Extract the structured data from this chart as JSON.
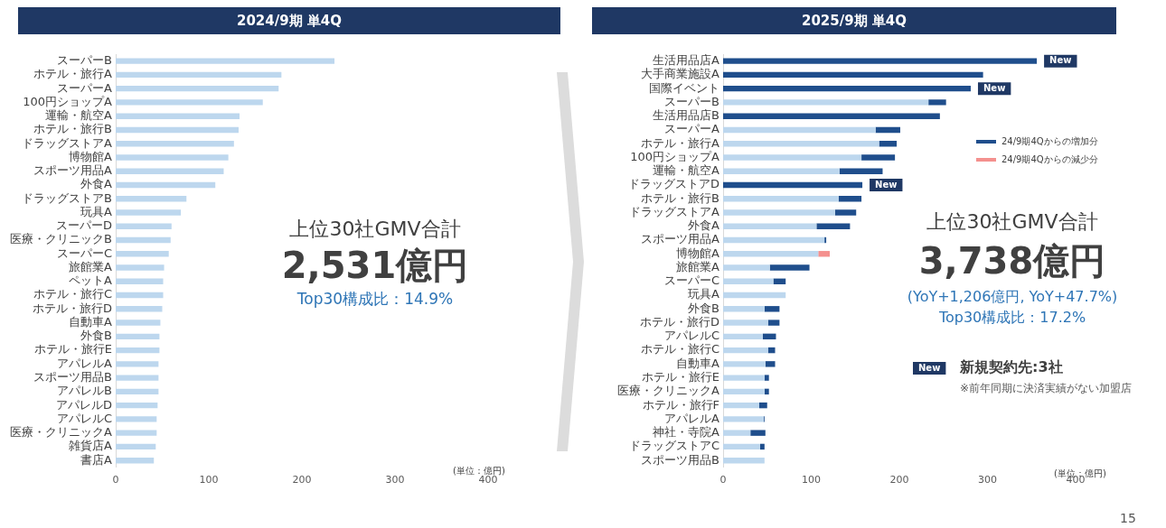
{
  "chart_data": [
    {
      "type": "bar",
      "orientation": "horizontal",
      "title": "2024/9期 単4Q",
      "categories": [
        "スーパーB",
        "ホテル・旅行A",
        "スーパーA",
        "100円ショップA",
        "運輸・航空A",
        "ホテル・旅行B",
        "ドラッグストアA",
        "博物館A",
        "スポーツ用品A",
        "外食A",
        "ドラッグストアB",
        "玩具A",
        "スーパーD",
        "医療・クリニックB",
        "スーパーC",
        "旅館業A",
        "ペットA",
        "ホテル・旅行C",
        "ホテル・旅行D",
        "自動車A",
        "外食B",
        "ホテル・旅行E",
        "アパレルA",
        "スポーツ用品B",
        "アパレルB",
        "アパレルD",
        "アパレルC",
        "医療・クリニックA",
        "雑貨店A",
        "書店A"
      ],
      "values": [
        235,
        178,
        175,
        158,
        133,
        132,
        127,
        121,
        116,
        107,
        76,
        70,
        60,
        59,
        57,
        52,
        51,
        51,
        50,
        48,
        47,
        47,
        46,
        46,
        46,
        45,
        44,
        44,
        43,
        41
      ],
      "color": "#bdd7ee",
      "xlim": [
        0,
        400
      ],
      "xticks": [
        0,
        100,
        200,
        300,
        400
      ],
      "annotations": [
        "上位30社GMV合計",
        "2,531億円",
        "Top30構成比：14.9%",
        "(単位：億円)"
      ]
    },
    {
      "type": "bar",
      "orientation": "horizontal",
      "stacked": true,
      "title": "2025/9期 単4Q",
      "categories": [
        "生活用品店A",
        "大手商業施設A",
        "国際イベント",
        "スーパーB",
        "生活用品店B",
        "スーパーA",
        "ホテル・旅行A",
        "100円ショップA",
        "運輸・航空A",
        "ドラッグストアD",
        "ホテル・旅行B",
        "ドラッグストアA",
        "外食A",
        "スポーツ用品A",
        "博物館A",
        "旅館業A",
        "スーパーC",
        "玩具A",
        "外食B",
        "ホテル・旅行D",
        "アパレルC",
        "ホテル・旅行C",
        "自動車A",
        "ホテル・旅行E",
        "医療・クリニックA",
        "ホテル・旅行F",
        "アパレルA",
        "神社・寺院A",
        "ドラッグストアC",
        "スポーツ用品B"
      ],
      "series": [
        {
          "color": "#bdd7ee",
          "values": [
            null,
            null,
            null,
            233,
            null,
            173,
            177,
            157,
            132,
            null,
            131,
            127,
            106,
            115,
            108,
            53,
            57,
            71,
            47,
            51,
            45,
            51,
            48,
            47,
            47,
            41,
            46,
            31,
            42,
            47
          ]
        },
        {
          "name": "24/9期4Qからの増加分",
          "color": "#1f4e8c",
          "values": [
            356,
            295,
            281,
            20,
            246,
            28,
            20,
            38,
            49,
            158,
            26,
            24,
            38,
            2,
            null,
            45,
            14,
            null,
            17,
            13,
            15,
            8,
            11,
            5,
            5,
            9,
            1,
            17,
            5,
            null
          ]
        },
        {
          "name": "24/9期4Qからの減少分",
          "color": "#f4908e",
          "values": [
            null,
            null,
            null,
            null,
            null,
            null,
            null,
            null,
            null,
            null,
            null,
            null,
            null,
            null,
            13,
            null,
            null,
            null,
            null,
            null,
            null,
            null,
            null,
            null,
            null,
            null,
            null,
            null,
            null,
            null
          ]
        }
      ],
      "xlim": [
        0,
        400
      ],
      "xticks": [
        0,
        100,
        200,
        300,
        400
      ],
      "legend": "top right",
      "annotations": [
        {
          "text": "New",
          "x": 356,
          "y": "生活用品店A"
        },
        {
          "text": "New",
          "x": 281,
          "y": "国際イベント"
        },
        {
          "text": "New",
          "x": 158,
          "y": "ドラッグストアD"
        },
        "上位30社GMV合計",
        "3,738億円",
        "(YoY+1,206億円, YoY+47.7%)",
        "Top30構成比：17.2%",
        "New",
        "新規契約先:3社",
        "※前年同期に決済実績がない加盟店",
        "(単位：億円)",
        "15"
      ]
    }
  ]
}
